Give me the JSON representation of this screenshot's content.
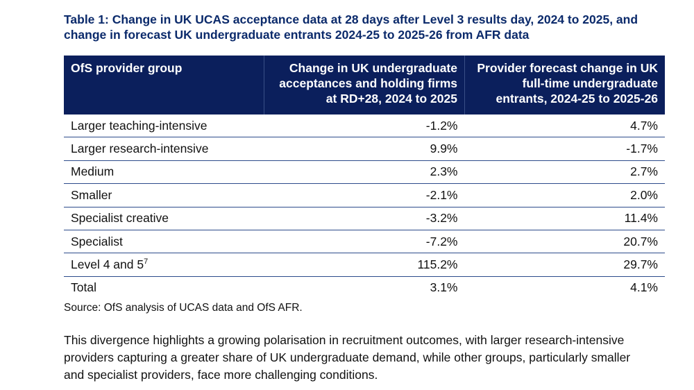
{
  "title": "Table 1: Change in UK UCAS acceptance data at 28 days after Level 3 results day, 2024 to 2025, and change in forecast UK undergraduate entrants 2024-25 to 2025-26 from AFR data",
  "table": {
    "headers": [
      "OfS provider group",
      "Change in UK undergraduate acceptances and holding firms at RD+28, 2024 to 2025",
      "Provider forecast change in UK full-time undergraduate entrants, 2024-25 to 2025-26"
    ],
    "rows": [
      {
        "group": "Larger teaching-intensive",
        "acceptances": "-1.2%",
        "forecast": "4.7%"
      },
      {
        "group": "Larger research-intensive",
        "acceptances": "9.9%",
        "forecast": "-1.7%"
      },
      {
        "group": "Medium",
        "acceptances": "2.3%",
        "forecast": "2.7%"
      },
      {
        "group": "Smaller",
        "acceptances": "-2.1%",
        "forecast": "2.0%"
      },
      {
        "group": "Specialist creative",
        "acceptances": "-3.2%",
        "forecast": "11.4%"
      },
      {
        "group": "Specialist",
        "acceptances": "-7.2%",
        "forecast": "20.7%"
      },
      {
        "group": "Level 4 and 5",
        "footnote": "7",
        "acceptances": "115.2%",
        "forecast": "29.7%"
      },
      {
        "group": "Total",
        "acceptances": "3.1%",
        "forecast": "4.1%"
      }
    ]
  },
  "source": "Source: OfS analysis of UCAS data and OfS AFR.",
  "paragraph": "This divergence highlights a growing polarisation in recruitment outcomes, with larger research-intensive providers capturing a greater share of UK undergraduate demand, while other groups, particularly smaller and specialist providers, face more challenging conditions."
}
